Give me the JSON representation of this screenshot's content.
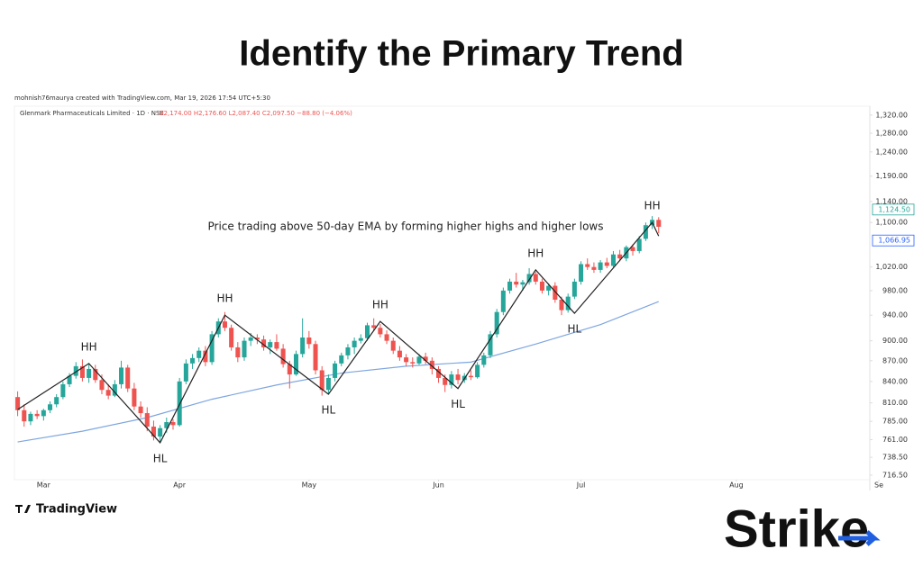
{
  "header": {
    "title": "Identify the Primary Trend"
  },
  "footer": {
    "tradingview": "TradingView",
    "brand": "Strike"
  },
  "chart_data": {
    "type": "candlestick",
    "credit": "mohnish76maurya created with TradingView.com, Mar 19, 2026 17:54 UTC+5:30",
    "symbol": "Glenmark Pharmaceuticals Limited · 1D · NSE",
    "ohlc_text": "O2,174.00 H2,176.60 L2,087.40 C2,097.50 −88.80 (−4.06%)",
    "annotation": "Price trading above 50-day EMA by forming higher highs and higher lows",
    "up_color": "#26a69a",
    "down_color": "#ef5350",
    "log_scale": true,
    "grid": false,
    "xlim": [
      -0.5,
      133
    ],
    "xticks": [
      {
        "value": 4,
        "label": "Mar"
      },
      {
        "value": 25,
        "label": "Apr"
      },
      {
        "value": 45,
        "label": "May"
      },
      {
        "value": 65,
        "label": "Jun"
      },
      {
        "value": 87,
        "label": "Jul"
      },
      {
        "value": 111,
        "label": "Aug"
      },
      {
        "value": 133,
        "label": "Se"
      }
    ],
    "ylim": [
      711,
      1340
    ],
    "yticks": [
      {
        "value": 1320,
        "label": "1,320.00"
      },
      {
        "value": 1280,
        "label": "1,280.00"
      },
      {
        "value": 1240,
        "label": "1,240.00"
      },
      {
        "value": 1190,
        "label": "1,190.00"
      },
      {
        "value": 1140,
        "label": "1,140.00"
      },
      {
        "value": 1100,
        "label": "1,100.00"
      },
      {
        "value": 1020,
        "label": "1,020.00"
      },
      {
        "value": 980,
        "label": "980.00"
      },
      {
        "value": 940,
        "label": "940.00"
      },
      {
        "value": 900,
        "label": "900.00"
      },
      {
        "value": 870,
        "label": "870.00"
      },
      {
        "value": 840,
        "label": "840.00"
      },
      {
        "value": 810,
        "label": "810.00"
      },
      {
        "value": 785,
        "label": "785.00"
      },
      {
        "value": 761,
        "label": "761.00"
      },
      {
        "value": 738.5,
        "label": "738.50"
      },
      {
        "value": 716.5,
        "label": "716.50"
      }
    ],
    "price_labels": [
      {
        "value": 1124.5,
        "label": "1,124.50",
        "color": "#26a69a"
      },
      {
        "value": 1066.95,
        "label": "1,066.95",
        "color": "#2962ff"
      }
    ],
    "open": [
      818,
      800,
      785,
      795,
      792,
      800,
      808,
      818,
      836,
      848,
      862,
      845,
      858,
      842,
      828,
      820,
      836,
      860,
      830,
      805,
      796,
      778,
      765,
      776,
      784,
      780,
      840,
      866,
      874,
      885,
      868,
      910,
      930,
      920,
      890,
      875,
      900,
      905,
      902,
      890,
      898,
      888,
      865,
      850,
      880,
      905,
      895,
      856,
      828,
      845,
      866,
      878,
      890,
      900,
      904,
      924,
      920,
      910,
      900,
      885,
      875,
      868,
      866,
      876,
      870,
      858,
      845,
      835,
      850,
      842,
      848,
      846,
      864,
      878,
      910,
      945,
      980,
      995,
      990,
      994,
      1008,
      995,
      980,
      988,
      965,
      948,
      970,
      995,
      1025,
      1020,
      1015,
      1028,
      1022,
      1042,
      1035,
      1055,
      1048,
      1070,
      1095,
      1105
    ],
    "high": [
      826,
      808,
      798,
      800,
      802,
      812,
      822,
      840,
      852,
      868,
      872,
      866,
      864,
      850,
      836,
      842,
      870,
      864,
      838,
      812,
      804,
      786,
      780,
      790,
      788,
      845,
      872,
      880,
      890,
      892,
      915,
      935,
      945,
      925,
      898,
      905,
      912,
      910,
      908,
      902,
      910,
      895,
      870,
      885,
      935,
      915,
      900,
      862,
      850,
      870,
      882,
      895,
      905,
      910,
      928,
      935,
      926,
      916,
      905,
      892,
      880,
      875,
      880,
      882,
      875,
      862,
      850,
      855,
      858,
      852,
      856,
      868,
      882,
      915,
      950,
      985,
      1000,
      1010,
      998,
      1018,
      1012,
      1000,
      992,
      994,
      970,
      975,
      1000,
      1030,
      1035,
      1028,
      1032,
      1036,
      1048,
      1050,
      1058,
      1060,
      1075,
      1100,
      1112,
      1110
    ],
    "low": [
      792,
      778,
      780,
      788,
      786,
      796,
      804,
      815,
      832,
      844,
      840,
      838,
      838,
      822,
      815,
      818,
      830,
      825,
      800,
      790,
      772,
      760,
      757,
      770,
      774,
      778,
      836,
      858,
      868,
      862,
      864,
      905,
      915,
      885,
      868,
      870,
      892,
      895,
      885,
      880,
      885,
      860,
      830,
      848,
      875,
      888,
      850,
      820,
      822,
      840,
      862,
      872,
      880,
      896,
      900,
      915,
      905,
      895,
      880,
      870,
      862,
      860,
      864,
      865,
      850,
      838,
      825,
      830,
      836,
      838,
      842,
      844,
      860,
      874,
      905,
      940,
      975,
      985,
      980,
      990,
      990,
      975,
      972,
      960,
      940,
      944,
      966,
      990,
      1015,
      1010,
      1010,
      1018,
      1018,
      1030,
      1030,
      1040,
      1044,
      1066,
      1088,
      1080
    ],
    "close": [
      800,
      785,
      795,
      792,
      800,
      808,
      818,
      836,
      848,
      862,
      845,
      858,
      842,
      828,
      820,
      836,
      860,
      830,
      805,
      796,
      778,
      765,
      776,
      784,
      780,
      840,
      866,
      874,
      885,
      868,
      910,
      930,
      920,
      890,
      875,
      900,
      905,
      902,
      890,
      898,
      888,
      865,
      850,
      880,
      905,
      895,
      856,
      828,
      845,
      866,
      878,
      890,
      900,
      904,
      924,
      920,
      910,
      900,
      885,
      875,
      868,
      866,
      876,
      870,
      858,
      845,
      835,
      850,
      842,
      848,
      846,
      864,
      878,
      910,
      945,
      980,
      995,
      990,
      994,
      1008,
      995,
      980,
      988,
      965,
      948,
      970,
      995,
      1025,
      1020,
      1015,
      1028,
      1022,
      1042,
      1035,
      1055,
      1048,
      1070,
      1095,
      1105,
      1092
    ],
    "ema": {
      "color": "#7ea6e0",
      "x": [
        0,
        10,
        20,
        30,
        40,
        50,
        60,
        70,
        80,
        90,
        99
      ],
      "values": [
        758,
        772,
        790,
        815,
        835,
        852,
        862,
        868,
        895,
        925,
        962
      ]
    },
    "zigzag": {
      "color": "#222222",
      "points": [
        {
          "index": 0,
          "value": 801
        },
        {
          "index": 11,
          "value": 866,
          "label": "HH"
        },
        {
          "index": 22,
          "value": 757,
          "label": "HL"
        },
        {
          "index": 32,
          "value": 940,
          "label": "HH"
        },
        {
          "index": 48,
          "value": 822,
          "label": "HL"
        },
        {
          "index": 56,
          "value": 930,
          "label": "HH"
        },
        {
          "index": 68,
          "value": 830,
          "label": "HL"
        },
        {
          "index": 80,
          "value": 1015,
          "label": "HH"
        },
        {
          "index": 86,
          "value": 943,
          "label": "HL"
        },
        {
          "index": 98,
          "value": 1100,
          "label": "HH"
        },
        {
          "index": 99,
          "value": 1075
        }
      ]
    }
  }
}
